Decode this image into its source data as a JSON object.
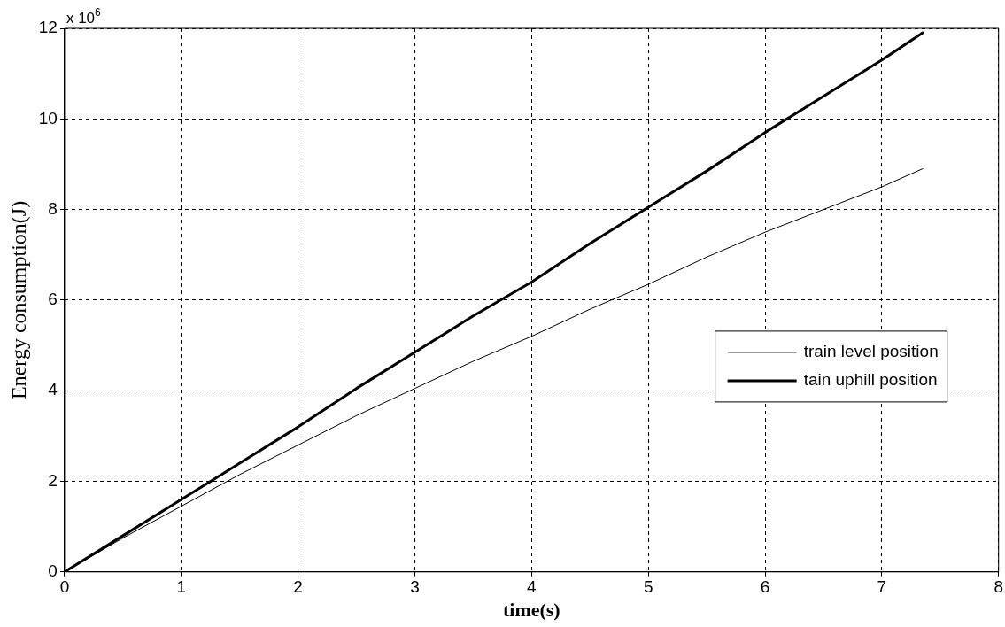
{
  "chart_data": {
    "type": "line",
    "xlabel": "time(s)",
    "ylabel": "Energy consumption(J)",
    "annotations": [
      "x 10$^{6}$"
    ],
    "xlim": [
      0,
      8
    ],
    "xticks": [
      0,
      1,
      2,
      3,
      4,
      5,
      6,
      7,
      8
    ],
    "ylim": [
      0,
      12
    ],
    "yticks": [
      0,
      2,
      4,
      6,
      8,
      10,
      12
    ],
    "grid": true,
    "legend": "right",
    "line_style": "solid",
    "marker": "none",
    "series": [
      {
        "name": "train level position",
        "color": "#000000",
        "x": [
          0,
          0.5,
          1,
          1.5,
          2,
          2.5,
          3,
          3.5,
          4,
          4.5,
          5,
          5.5,
          6,
          6.5,
          7,
          7.35
        ],
        "values": [
          0,
          0.75,
          1.45,
          2.15,
          2.8,
          3.45,
          4.05,
          4.65,
          5.2,
          5.8,
          6.35,
          6.95,
          7.5,
          8.0,
          8.5,
          8.9
        ]
      },
      {
        "name": "tain uphill position",
        "color": "#000000",
        "x": [
          0,
          0.5,
          1,
          1.5,
          2,
          2.5,
          3,
          3.5,
          4,
          4.5,
          5,
          5.5,
          6,
          6.5,
          7,
          7.35
        ],
        "values": [
          0,
          0.8,
          1.6,
          2.4,
          3.2,
          4.05,
          4.85,
          5.65,
          6.4,
          7.25,
          8.05,
          8.85,
          9.7,
          10.5,
          11.3,
          11.9
        ]
      }
    ]
  }
}
